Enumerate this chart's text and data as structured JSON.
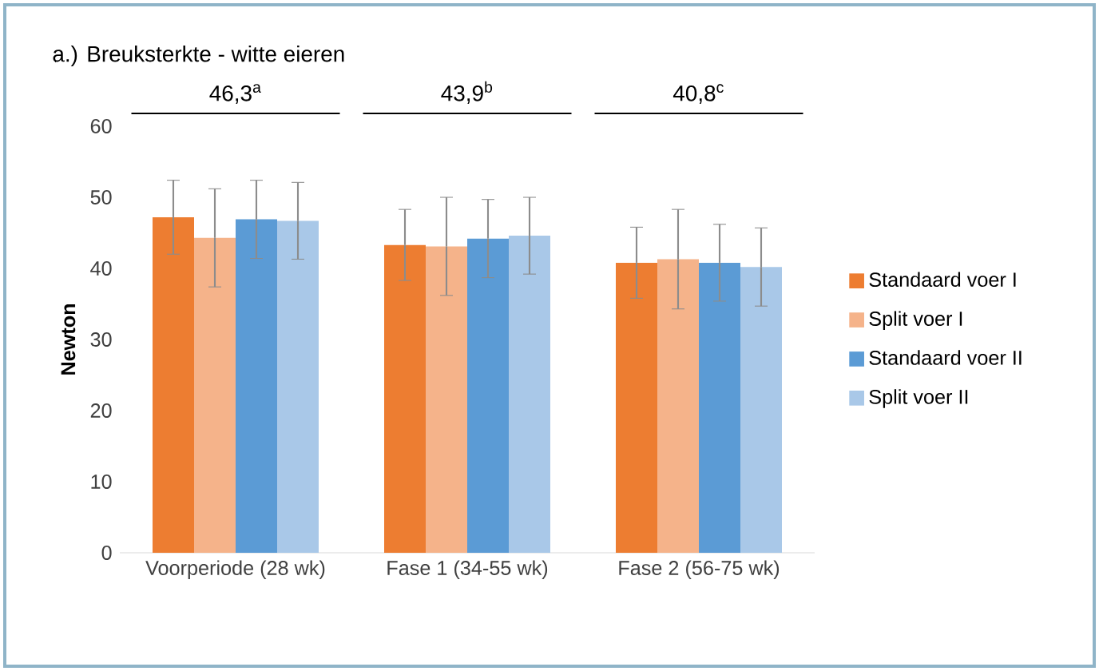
{
  "chart_data": {
    "type": "bar",
    "title": "a.) Breuksterkte - witte eieren",
    "ylabel": "Newton",
    "categories": [
      "Voorperiode (28 wk)",
      "Fase 1 (34-55 wk)",
      "Fase 2 (56-75 wk)"
    ],
    "series": [
      {
        "name": "Standaard voer I",
        "color": "#ed7d31",
        "values": [
          47.2,
          43.3,
          40.8
        ],
        "errors": [
          5.2,
          5.0,
          5.0
        ]
      },
      {
        "name": "Split voer I",
        "color": "#f5b38a",
        "values": [
          44.3,
          43.1,
          41.3
        ],
        "errors": [
          6.9,
          6.9,
          7.0
        ]
      },
      {
        "name": "Standaard voer II",
        "color": "#5b9bd5",
        "values": [
          46.9,
          44.2,
          40.8
        ],
        "errors": [
          5.5,
          5.5,
          5.4
        ]
      },
      {
        "name": "Split voer II",
        "color": "#a9c8e8",
        "values": [
          46.7,
          44.6,
          40.2
        ],
        "errors": [
          5.4,
          5.4,
          5.5
        ]
      }
    ],
    "ylim": [
      0,
      60
    ],
    "yticks": [
      0,
      10,
      20,
      30,
      40,
      50,
      60
    ],
    "grid": false,
    "legend": "right",
    "annotations": [
      "46,3$^{a}$",
      "43,9$^{b}$",
      "40,8$^{c}$"
    ]
  }
}
